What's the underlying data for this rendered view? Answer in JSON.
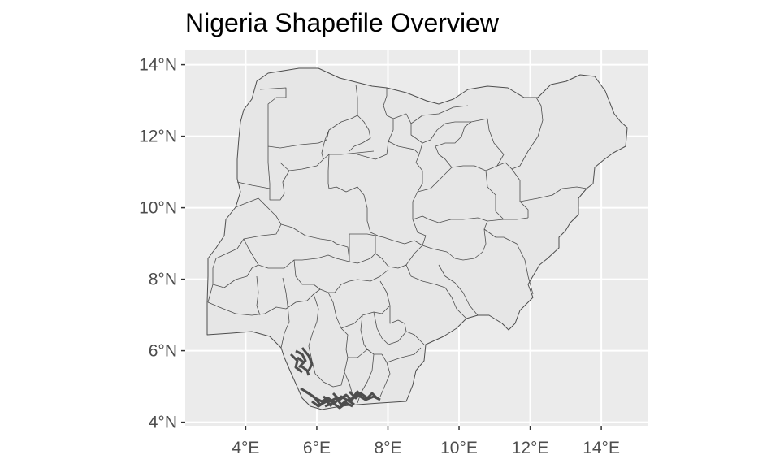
{
  "title": "Nigeria Shapefile Overview",
  "colors": {
    "panel_background": "#ebebeb",
    "grid_major": "#ffffff",
    "land_fill": "#e6e6e6",
    "boundary": "#4d4d4d",
    "axis_text": "#4d4d4d"
  },
  "map": {
    "country": "Nigeria",
    "projection": "longitude-latitude",
    "lon_range": [
      2.3,
      15.3
    ],
    "lat_range": [
      3.9,
      14.4
    ],
    "x_ticks": [
      {
        "value": 4,
        "label": "4°E"
      },
      {
        "value": 6,
        "label": "6°E"
      },
      {
        "value": 8,
        "label": "8°E"
      },
      {
        "value": 10,
        "label": "10°E"
      },
      {
        "value": 12,
        "label": "12°E"
      },
      {
        "value": 14,
        "label": "14°E"
      }
    ],
    "y_ticks": [
      {
        "value": 4,
        "label": "4°N"
      },
      {
        "value": 6,
        "label": "6°N"
      },
      {
        "value": 8,
        "label": "8°N"
      },
      {
        "value": 10,
        "label": "10°N"
      },
      {
        "value": 12,
        "label": "12°N"
      },
      {
        "value": 14,
        "label": "14°N"
      }
    ],
    "grid": true
  }
}
